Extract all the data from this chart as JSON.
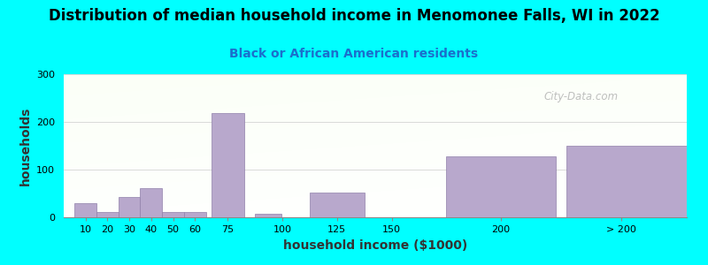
{
  "title": "Distribution of median household income in Menomonee Falls, WI in 2022",
  "subtitle": "Black or African American residents",
  "xlabel": "household income ($1000)",
  "ylabel": "households",
  "background_color": "#00FFFF",
  "bar_color": "#b8a8cc",
  "bar_edge_color": "#9080aa",
  "bar_heights": [
    30,
    12,
    42,
    62,
    12,
    12,
    218,
    8,
    52,
    0,
    128,
    150
  ],
  "bar_lefts": [
    5,
    15,
    25,
    35,
    45,
    55,
    67.5,
    87.5,
    112.5,
    137.5,
    175,
    230
  ],
  "bar_widths": [
    10,
    10,
    10,
    10,
    10,
    10,
    15,
    12,
    25,
    12,
    50,
    55
  ],
  "ylim": [
    0,
    300
  ],
  "yticks": [
    0,
    100,
    200,
    300
  ],
  "xtick_locs": [
    10,
    20,
    30,
    40,
    50,
    60,
    75,
    100,
    125,
    150,
    200,
    255
  ],
  "xtick_labs": [
    "10",
    "20",
    "30",
    "40",
    "50",
    "60",
    "75",
    "100",
    "125",
    "150",
    "200",
    "> 200"
  ],
  "xlim": [
    0,
    285
  ],
  "watermark": "City-Data.com",
  "title_fontsize": 12,
  "subtitle_fontsize": 10,
  "axis_label_fontsize": 10
}
